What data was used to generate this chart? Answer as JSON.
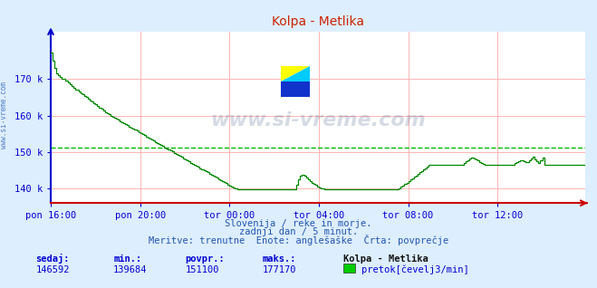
{
  "title": "Kolpa - Metlika",
  "bg_color": "#ddeeff",
  "plot_bg_color": "#ffffff",
  "line_color": "#008800",
  "avg_line_color": "#00bb00",
  "axis_color": "#0000cc",
  "grid_color": "#ffaaaa",
  "x_axis_color": "#cc0000",
  "y_axis_color": "#0000cc",
  "title_color": "#cc2200",
  "ylim": [
    136000,
    183000
  ],
  "yticks": [
    140000,
    150000,
    160000,
    170000
  ],
  "ytick_labels": [
    "140 k",
    "150 k",
    "160 k",
    "170 k"
  ],
  "avg_value": 151100,
  "x_tick_labels": [
    "pon 16:00",
    "pon 20:00",
    "tor 00:00",
    "tor 04:00",
    "tor 08:00",
    "tor 12:00"
  ],
  "x_tick_positions": [
    0,
    48,
    96,
    144,
    192,
    240
  ],
  "total_points": 288,
  "subtitle1": "Slovenija / reke in morje.",
  "subtitle2": "zadnji dan / 5 minut.",
  "subtitle3": "Meritve: trenutne  Enote: anglešaške  Črta: povprečje",
  "label_sedaj": "sedaj:",
  "label_min": "min.:",
  "label_povpr": "povpr.:",
  "label_maks": "maks.:",
  "val_sedaj": "146592",
  "val_min": "139684",
  "val_povpr": "151100",
  "val_maks": "177170",
  "legend_station": "Kolpa - Metlika",
  "legend_label": "pretok[čevelj3/min]",
  "legend_color": "#00cc00",
  "watermark": "www.si-vreme.com",
  "watermark_color": "#1a3a6a",
  "watermark_alpha": 0.18,
  "side_label": "www.si-vreme.com",
  "data_y": [
    177170,
    175000,
    173000,
    171500,
    171000,
    170500,
    170200,
    170000,
    169500,
    169000,
    168500,
    168000,
    167500,
    167200,
    167000,
    166600,
    166200,
    165800,
    165400,
    165000,
    164600,
    164200,
    163800,
    163400,
    163000,
    162600,
    162200,
    161800,
    161400,
    161000,
    160600,
    160300,
    160000,
    159700,
    159400,
    159100,
    158800,
    158500,
    158200,
    157900,
    157600,
    157300,
    157000,
    156700,
    156400,
    156100,
    155800,
    155500,
    155200,
    154900,
    154600,
    154300,
    154000,
    153700,
    153400,
    153100,
    152800,
    152500,
    152200,
    151900,
    151600,
    151300,
    151000,
    150700,
    150400,
    150100,
    149800,
    149500,
    149200,
    148900,
    148600,
    148300,
    148000,
    147700,
    147400,
    147100,
    146800,
    146500,
    146200,
    145900,
    145600,
    145300,
    145000,
    144700,
    144400,
    144100,
    143800,
    143500,
    143200,
    142900,
    142600,
    142300,
    142000,
    141700,
    141400,
    141100,
    140800,
    140500,
    140200,
    139900,
    139684,
    139684,
    139684,
    139684,
    139684,
    139684,
    139684,
    139684,
    139684,
    139684,
    139684,
    139684,
    139684,
    139684,
    139684,
    139684,
    139684,
    139684,
    139684,
    139684,
    139684,
    139684,
    139684,
    139684,
    139684,
    139684,
    139684,
    139684,
    139684,
    139684,
    139684,
    139684,
    141000,
    142500,
    143500,
    143800,
    143500,
    143000,
    142500,
    142000,
    141600,
    141200,
    140900,
    140600,
    140300,
    140100,
    139900,
    139800,
    139700,
    139684,
    139684,
    139684,
    139684,
    139684,
    139684,
    139684,
    139684,
    139684,
    139684,
    139684,
    139684,
    139684,
    139684,
    139684,
    139684,
    139684,
    139684,
    139684,
    139684,
    139684,
    139684,
    139684,
    139684,
    139684,
    139684,
    139684,
    139684,
    139684,
    139684,
    139684,
    139684,
    139684,
    139684,
    139684,
    139684,
    139684,
    139684,
    140000,
    140400,
    140800,
    141200,
    141600,
    142000,
    142400,
    142800,
    143200,
    143600,
    144000,
    144400,
    144800,
    145200,
    145600,
    146000,
    146400,
    146592,
    146592,
    146592,
    146592,
    146592,
    146592,
    146592,
    146592,
    146592,
    146592,
    146592,
    146592,
    146592,
    146592,
    146592,
    146592,
    146592,
    146592,
    147000,
    147400,
    147800,
    148200,
    148400,
    148200,
    148000,
    147600,
    147200,
    146900,
    146700,
    146592,
    146592,
    146592,
    146592,
    146592,
    146592,
    146592,
    146592,
    146592,
    146592,
    146592,
    146592,
    146592,
    146592,
    146592,
    146592,
    147000,
    147200,
    147400,
    147600,
    147600,
    147400,
    147200,
    147200,
    147800,
    148200,
    148600,
    148000,
    147500,
    147000,
    147800,
    148400,
    146592
  ]
}
